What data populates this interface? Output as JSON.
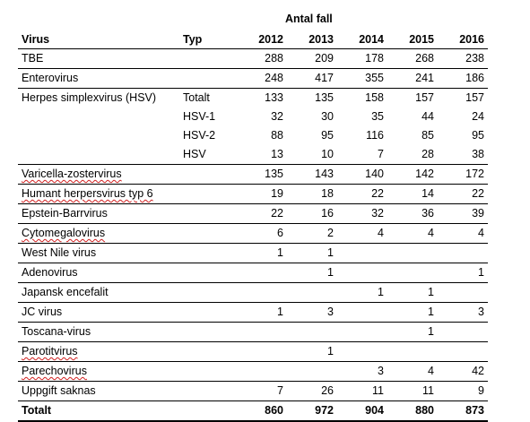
{
  "super_header": "Antal fall",
  "headers": {
    "virus": "Virus",
    "typ": "Typ",
    "years": [
      "2012",
      "2013",
      "2014",
      "2015",
      "2016"
    ]
  },
  "rows": [
    {
      "virus": "TBE",
      "typ": "",
      "values": [
        "288",
        "209",
        "178",
        "268",
        "238"
      ],
      "sep": true
    },
    {
      "virus": "Enterovirus",
      "typ": "",
      "values": [
        "248",
        "417",
        "355",
        "241",
        "186"
      ],
      "sep": true
    },
    {
      "virus": "Herpes simplexvirus (HSV)",
      "typ": "Totalt",
      "values": [
        "133",
        "135",
        "158",
        "157",
        "157"
      ],
      "sep": false
    },
    {
      "virus": "",
      "typ": "HSV-1",
      "values": [
        "32",
        "30",
        "35",
        "44",
        "24"
      ],
      "sep": false
    },
    {
      "virus": "",
      "typ": "HSV-2",
      "values": [
        "88",
        "95",
        "116",
        "85",
        "95"
      ],
      "sep": false
    },
    {
      "virus": "",
      "typ": "HSV",
      "values": [
        "13",
        "10",
        "7",
        "28",
        "38"
      ],
      "sep": true
    },
    {
      "virus": "Varicella-zostervirus",
      "typ": "",
      "values": [
        "135",
        "143",
        "140",
        "142",
        "172"
      ],
      "sep": true,
      "squig": true
    },
    {
      "virus": "Humant herpersvirus typ 6",
      "typ": "",
      "values": [
        "19",
        "18",
        "22",
        "14",
        "22"
      ],
      "sep": true,
      "squig": true
    },
    {
      "virus": "Epstein-Barrvirus",
      "typ": "",
      "values": [
        "22",
        "16",
        "32",
        "36",
        "39"
      ],
      "sep": true
    },
    {
      "virus": "Cytomegalovirus",
      "typ": "",
      "values": [
        "6",
        "2",
        "4",
        "4",
        "4"
      ],
      "sep": true,
      "squig": true
    },
    {
      "virus": "West Nile virus",
      "typ": "",
      "values": [
        "1",
        "1",
        "",
        "",
        ""
      ],
      "sep": true
    },
    {
      "virus": "Adenovirus",
      "typ": "",
      "values": [
        "",
        "1",
        "",
        "",
        "1"
      ],
      "sep": true
    },
    {
      "virus": "Japansk encefalit",
      "typ": "",
      "values": [
        "",
        "",
        "1",
        "1",
        ""
      ],
      "sep": true
    },
    {
      "virus": "JC virus",
      "typ": "",
      "values": [
        "1",
        "3",
        "",
        "1",
        "3"
      ],
      "sep": true
    },
    {
      "virus": "Toscana-virus",
      "typ": "",
      "values": [
        "",
        "",
        "",
        "1",
        ""
      ],
      "sep": true
    },
    {
      "virus": "Parotitvirus",
      "typ": "",
      "values": [
        "",
        "1",
        "",
        "",
        ""
      ],
      "sep": true,
      "squig": true
    },
    {
      "virus": "Parechovirus",
      "typ": "",
      "values": [
        "",
        "",
        "3",
        "4",
        "42"
      ],
      "sep": true,
      "squig": true
    },
    {
      "virus": "Uppgift saknas",
      "typ": "",
      "values": [
        "7",
        "26",
        "11",
        "11",
        "9"
      ],
      "sep": false
    }
  ],
  "total": {
    "label": "Totalt",
    "values": [
      "860",
      "972",
      "904",
      "880",
      "873"
    ]
  }
}
